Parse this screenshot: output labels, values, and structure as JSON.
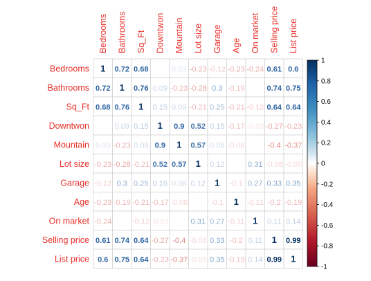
{
  "chart_data": {
    "type": "heatmap",
    "title": "",
    "variables": [
      "Bedrooms",
      "Bathrooms",
      "Sq_Ft",
      "Downtwon",
      "Mountain",
      "Lot size",
      "Garage",
      "Age",
      "On market",
      "Selling price",
      "List price"
    ],
    "matrix": [
      [
        1,
        0.72,
        0.68,
        0,
        0.03,
        -0.23,
        -0.12,
        -0.23,
        -0.24,
        0.61,
        0.6
      ],
      [
        0.72,
        1,
        0.76,
        0.09,
        -0.23,
        -0.28,
        0.3,
        -0.19,
        0,
        0.74,
        0.75
      ],
      [
        0.68,
        0.76,
        1,
        0.15,
        0.09,
        -0.21,
        0.25,
        -0.21,
        -0.12,
        0.64,
        0.64
      ],
      [
        0,
        0.09,
        0.15,
        1,
        0.9,
        0.52,
        0.15,
        -0.17,
        -0.03,
        -0.27,
        -0.23
      ],
      [
        0.03,
        -0.23,
        0.09,
        0.9,
        1,
        0.57,
        0.08,
        -0.08,
        0,
        -0.4,
        -0.37
      ],
      [
        -0.23,
        -0.28,
        -0.21,
        0.52,
        0.57,
        1,
        0.12,
        0,
        0.31,
        -0.08,
        -0.05
      ],
      [
        -0.12,
        0.3,
        0.25,
        0.15,
        0.08,
        0.12,
        1,
        -0.1,
        0.27,
        0.33,
        0.35
      ],
      [
        -0.23,
        -0.19,
        -0.21,
        -0.17,
        -0.08,
        0,
        -0.1,
        1,
        -0.11,
        -0.2,
        -0.19
      ],
      [
        -0.24,
        0,
        -0.12,
        -0.03,
        0,
        0.31,
        0.27,
        -0.11,
        1,
        0.11,
        0.14
      ],
      [
        0.61,
        0.74,
        0.64,
        -0.27,
        -0.4,
        -0.08,
        0.33,
        -0.2,
        0.11,
        1,
        0.99
      ],
      [
        0.6,
        0.75,
        0.64,
        -0.23,
        -0.37,
        -0.05,
        0.35,
        -0.19,
        0.14,
        0.99,
        1
      ]
    ],
    "color_range": [
      -1,
      1
    ],
    "colorbar_ticks": [
      1,
      0.8,
      0.6,
      0.4,
      0.2,
      0,
      -0.2,
      -0.4,
      -0.6,
      -0.8,
      -1
    ],
    "colorbar_tick_labels": [
      "1",
      "0.8",
      "0.6",
      "0.4",
      "0.2",
      "0",
      "-0.2",
      "-0.4",
      "-0.6",
      "-0.8",
      "-1"
    ],
    "colors": {
      "negative": "#67001F",
      "neutral": "#FFFFFF",
      "positive": "#053061",
      "label": "#E8302A",
      "grid": "#D3D3D3",
      "colorbar_border": "#000000"
    },
    "legend": "right",
    "grid": true
  }
}
